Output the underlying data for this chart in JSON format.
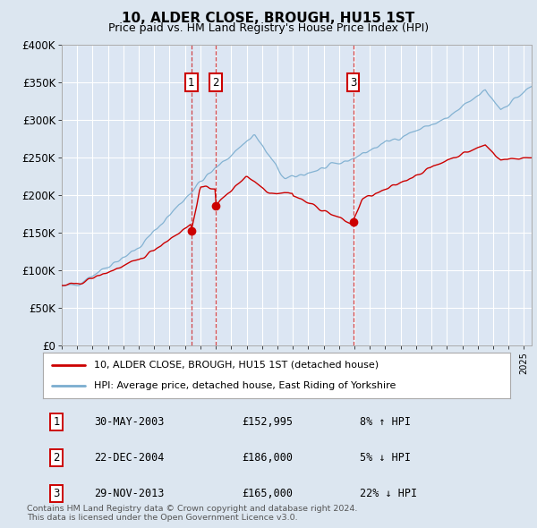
{
  "title": "10, ALDER CLOSE, BROUGH, HU15 1ST",
  "subtitle": "Price paid vs. HM Land Registry's House Price Index (HPI)",
  "background_color": "#dce6f0",
  "plot_background": "#dce6f0",
  "ylim": [
    0,
    400000
  ],
  "yticks": [
    0,
    50000,
    100000,
    150000,
    200000,
    250000,
    300000,
    350000,
    400000
  ],
  "xlim_start": 1995.0,
  "xlim_end": 2025.5,
  "sale_dates": [
    2003.41,
    2004.97,
    2013.91
  ],
  "sale_prices": [
    152995,
    186000,
    165000
  ],
  "sale_labels": [
    "1",
    "2",
    "3"
  ],
  "legend_line1": "10, ALDER CLOSE, BROUGH, HU15 1ST (detached house)",
  "legend_line2": "HPI: Average price, detached house, East Riding of Yorkshire",
  "table_rows": [
    [
      "1",
      "30-MAY-2003",
      "£152,995",
      "8% ↑ HPI"
    ],
    [
      "2",
      "22-DEC-2004",
      "£186,000",
      "5% ↓ HPI"
    ],
    [
      "3",
      "29-NOV-2013",
      "£165,000",
      "22% ↓ HPI"
    ]
  ],
  "footnote": "Contains HM Land Registry data © Crown copyright and database right 2024.\nThis data is licensed under the Open Government Licence v3.0.",
  "red_color": "#cc0000",
  "blue_color": "#7aadcf"
}
